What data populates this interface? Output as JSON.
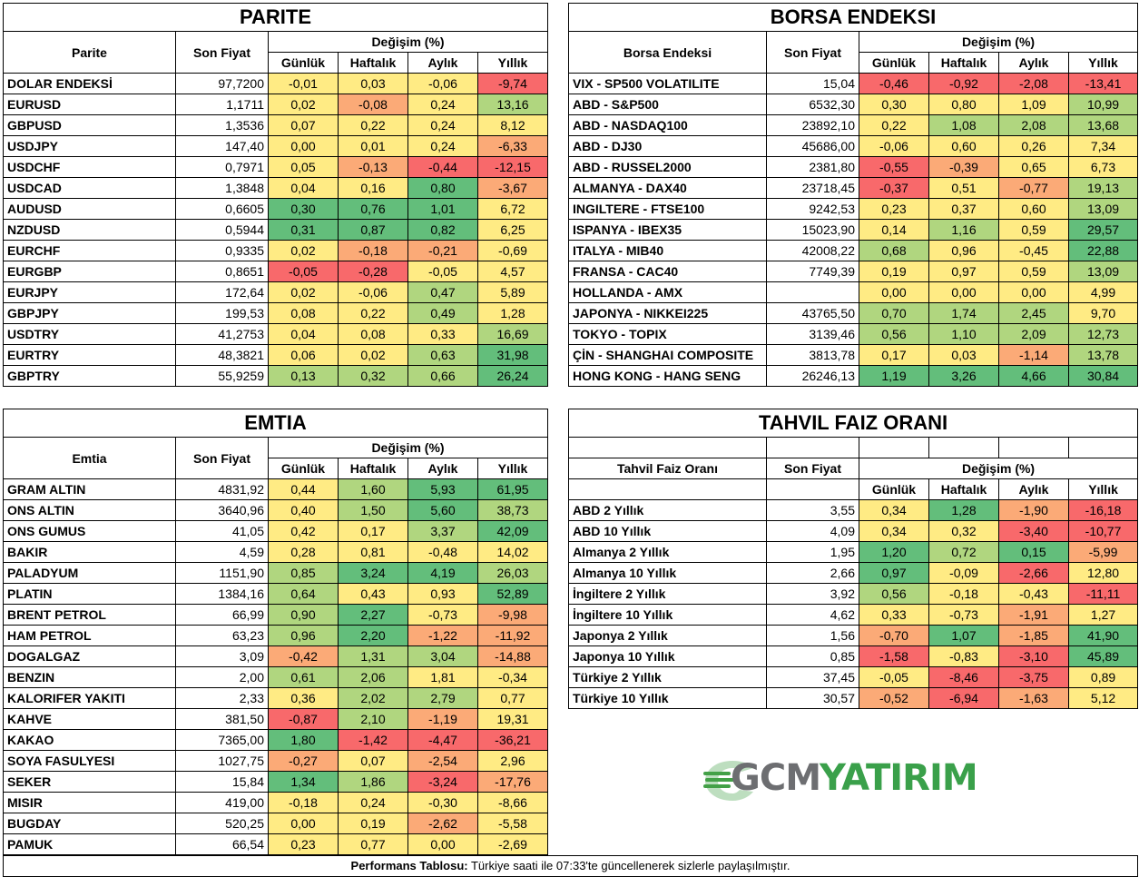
{
  "colors": {
    "red": "#f8696b",
    "orange": "#fbaa77",
    "yellow": "#ffeb84",
    "lightgreen": "#b0d67f",
    "green": "#63be7b"
  },
  "parite": {
    "title": "PARITE",
    "col_name": "Parite",
    "col_price": "Son Fiyat",
    "col_change": "Değişim (%)",
    "periods": [
      "Günlük",
      "Haftalık",
      "Aylık",
      "Yıllık"
    ],
    "rows": [
      {
        "name": "DOLAR ENDEKSİ",
        "price": "97,7200",
        "changes": [
          "-0,01",
          "0,03",
          "-0,06",
          "-9,74"
        ]
      },
      {
        "name": "EURUSD",
        "price": "1,1711",
        "changes": [
          "0,02",
          "-0,08",
          "0,24",
          "13,16"
        ]
      },
      {
        "name": "GBPUSD",
        "price": "1,3536",
        "changes": [
          "0,07",
          "0,22",
          "0,24",
          "8,12"
        ]
      },
      {
        "name": "USDJPY",
        "price": "147,40",
        "changes": [
          "0,00",
          "0,01",
          "0,24",
          "-6,33"
        ]
      },
      {
        "name": "USDCHF",
        "price": "0,7971",
        "changes": [
          "0,05",
          "-0,13",
          "-0,44",
          "-12,15"
        ]
      },
      {
        "name": "USDCAD",
        "price": "1,3848",
        "changes": [
          "0,04",
          "0,16",
          "0,80",
          "-3,67"
        ]
      },
      {
        "name": "AUDUSD",
        "price": "0,6605",
        "changes": [
          "0,30",
          "0,76",
          "1,01",
          "6,72"
        ]
      },
      {
        "name": "NZDUSD",
        "price": "0,5944",
        "changes": [
          "0,31",
          "0,87",
          "0,82",
          "6,25"
        ]
      },
      {
        "name": "EURCHF",
        "price": "0,9335",
        "changes": [
          "0,02",
          "-0,18",
          "-0,21",
          "-0,69"
        ]
      },
      {
        "name": "EURGBP",
        "price": "0,8651",
        "changes": [
          "-0,05",
          "-0,28",
          "-0,05",
          "4,57"
        ]
      },
      {
        "name": "EURJPY",
        "price": "172,64",
        "changes": [
          "0,02",
          "-0,06",
          "0,47",
          "5,89"
        ]
      },
      {
        "name": "GBPJPY",
        "price": "199,53",
        "changes": [
          "0,08",
          "0,22",
          "0,49",
          "1,28"
        ]
      },
      {
        "name": "USDTRY",
        "price": "41,2753",
        "changes": [
          "0,04",
          "0,08",
          "0,33",
          "16,69"
        ]
      },
      {
        "name": "EURTRY",
        "price": "48,3821",
        "changes": [
          "0,06",
          "0,02",
          "0,63",
          "31,98"
        ]
      },
      {
        "name": "GBPTRY",
        "price": "55,9259",
        "changes": [
          "0,13",
          "0,32",
          "0,66",
          "26,24"
        ]
      }
    ]
  },
  "borsa": {
    "title": "BORSA ENDEKSI",
    "col_name": "Borsa Endeksi",
    "col_price": "Son Fiyat",
    "col_change": "Değişim (%)",
    "periods": [
      "Günlük",
      "Haftalık",
      "Aylık",
      "Yıllık"
    ],
    "rows": [
      {
        "name": "VIX  - SP500 VOLATILITE",
        "price": "15,04",
        "changes": [
          "-0,46",
          "-0,92",
          "-2,08",
          "-13,41"
        ]
      },
      {
        "name": "ABD - S&P500",
        "price": "6532,30",
        "changes": [
          "0,30",
          "0,80",
          "1,09",
          "10,99"
        ]
      },
      {
        "name": "ABD - NASDAQ100",
        "price": "23892,10",
        "changes": [
          "0,22",
          "1,08",
          "2,08",
          "13,68"
        ]
      },
      {
        "name": "ABD - DJ30",
        "price": "45686,00",
        "changes": [
          "-0,06",
          "0,60",
          "0,26",
          "7,34"
        ]
      },
      {
        "name": "ABD - RUSSEL2000",
        "price": "2381,80",
        "changes": [
          "-0,55",
          "-0,39",
          "0,65",
          "6,73"
        ]
      },
      {
        "name": "ALMANYA - DAX40",
        "price": "23718,45",
        "changes": [
          "-0,37",
          "0,51",
          "-0,77",
          "19,13"
        ]
      },
      {
        "name": "INGILTERE - FTSE100",
        "price": "9242,53",
        "changes": [
          "0,23",
          "0,37",
          "0,60",
          "13,09"
        ]
      },
      {
        "name": "ISPANYA - IBEX35",
        "price": "15023,90",
        "changes": [
          "0,14",
          "1,16",
          "0,59",
          "29,57"
        ]
      },
      {
        "name": "ITALYA - MIB40",
        "price": "42008,22",
        "changes": [
          "0,68",
          "0,96",
          "-0,45",
          "22,88"
        ]
      },
      {
        "name": "FRANSA - CAC40",
        "price": "7749,39",
        "changes": [
          "0,19",
          "0,97",
          "0,59",
          "13,09"
        ]
      },
      {
        "name": "HOLLANDA - AMX",
        "price": "",
        "changes": [
          "0,00",
          "0,00",
          "0,00",
          "4,99"
        ]
      },
      {
        "name": "JAPONYA - NIKKEI225",
        "price": "43765,50",
        "changes": [
          "0,70",
          "1,74",
          "2,45",
          "9,70"
        ]
      },
      {
        "name": "TOKYO - TOPIX",
        "price": "3139,46",
        "changes": [
          "0,56",
          "1,10",
          "2,09",
          "12,73"
        ]
      },
      {
        "name": "ÇİN - SHANGHAI COMPOSITE",
        "price": "3813,78",
        "changes": [
          "0,17",
          "0,03",
          "-1,14",
          "13,78"
        ]
      },
      {
        "name": "HONG KONG - HANG SENG",
        "price": "26246,13",
        "changes": [
          "1,19",
          "3,26",
          "4,66",
          "30,84"
        ]
      }
    ]
  },
  "emtia": {
    "title": "EMTIA",
    "col_name": "Emtia",
    "col_price": "Son Fiyat",
    "col_change": "Değişim (%)",
    "periods": [
      "Günlük",
      "Haftalık",
      "Aylık",
      "Yıllık"
    ],
    "rows": [
      {
        "name": "GRAM ALTIN",
        "price": "4831,92",
        "changes": [
          "0,44",
          "1,60",
          "5,93",
          "61,95"
        ]
      },
      {
        "name": "ONS ALTIN",
        "price": "3640,96",
        "changes": [
          "0,40",
          "1,50",
          "5,60",
          "38,73"
        ]
      },
      {
        "name": "ONS GUMUS",
        "price": "41,05",
        "changes": [
          "0,42",
          "0,17",
          "3,37",
          "42,09"
        ]
      },
      {
        "name": "BAKIR",
        "price": "4,59",
        "changes": [
          "0,28",
          "0,81",
          "-0,48",
          "14,02"
        ]
      },
      {
        "name": "PALADYUM",
        "price": "1151,90",
        "changes": [
          "0,85",
          "3,24",
          "4,19",
          "26,03"
        ]
      },
      {
        "name": "PLATIN",
        "price": "1384,16",
        "changes": [
          "0,64",
          "0,43",
          "0,93",
          "52,89"
        ]
      },
      {
        "name": "BRENT PETROL",
        "price": "66,99",
        "changes": [
          "0,90",
          "2,27",
          "-0,73",
          "-9,98"
        ]
      },
      {
        "name": "HAM PETROL",
        "price": "63,23",
        "changes": [
          "0,96",
          "2,20",
          "-1,22",
          "-11,92"
        ]
      },
      {
        "name": "DOGALGAZ",
        "price": "3,09",
        "changes": [
          "-0,42",
          "1,31",
          "3,04",
          "-14,88"
        ]
      },
      {
        "name": "BENZIN",
        "price": "2,00",
        "changes": [
          "0,61",
          "2,06",
          "1,81",
          "-0,34"
        ]
      },
      {
        "name": "KALORIFER YAKITI",
        "price": "2,33",
        "changes": [
          "0,36",
          "2,02",
          "2,79",
          "0,77"
        ]
      },
      {
        "name": "KAHVE",
        "price": "381,50",
        "changes": [
          "-0,87",
          "2,10",
          "-1,19",
          "19,31"
        ]
      },
      {
        "name": "KAKAO",
        "price": "7365,00",
        "changes": [
          "1,80",
          "-1,42",
          "-4,47",
          "-36,21"
        ]
      },
      {
        "name": "SOYA FASULYESI",
        "price": "1027,75",
        "changes": [
          "-0,27",
          "0,07",
          "-2,54",
          "2,96"
        ]
      },
      {
        "name": "SEKER",
        "price": "15,84",
        "changes": [
          "1,34",
          "1,86",
          "-3,24",
          "-17,76"
        ]
      },
      {
        "name": "MISIR",
        "price": "419,00",
        "changes": [
          "-0,18",
          "0,24",
          "-0,30",
          "-8,66"
        ]
      },
      {
        "name": "BUGDAY",
        "price": "520,25",
        "changes": [
          "0,00",
          "0,19",
          "-2,62",
          "-5,58"
        ]
      },
      {
        "name": "PAMUK",
        "price": "66,54",
        "changes": [
          "0,23",
          "0,77",
          "0,00",
          "-2,69"
        ]
      }
    ]
  },
  "tahvil": {
    "title": "TAHVIL FAIZ ORANI",
    "col_name": "Tahvil Faiz Oranı",
    "col_price": "Son Fiyat",
    "col_change": "Değişim (%)",
    "periods": [
      "Günlük",
      "Haftalık",
      "Aylık",
      "Yıllık"
    ],
    "rows": [
      {
        "name": "ABD 2 Yıllık",
        "price": "3,55",
        "changes": [
          "0,34",
          "1,28",
          "-1,90",
          "-16,18"
        ]
      },
      {
        "name": "ABD 10 Yıllık",
        "price": "4,09",
        "changes": [
          "0,34",
          "0,32",
          "-3,40",
          "-10,77"
        ]
      },
      {
        "name": "Almanya 2 Yıllık",
        "price": "1,95",
        "changes": [
          "1,20",
          "0,72",
          "0,15",
          "-5,99"
        ]
      },
      {
        "name": "Almanya 10 Yıllık",
        "price": "2,66",
        "changes": [
          "0,97",
          "-0,09",
          "-2,66",
          "12,80"
        ]
      },
      {
        "name": "İngiltere 2 Yıllık",
        "price": "3,92",
        "changes": [
          "0,56",
          "-0,18",
          "-0,43",
          "-11,11"
        ]
      },
      {
        "name": "İngiltere 10 Yıllık",
        "price": "4,62",
        "changes": [
          "0,33",
          "-0,73",
          "-1,91",
          "1,27"
        ]
      },
      {
        "name": "Japonya 2 Yıllık",
        "price": "1,56",
        "changes": [
          "-0,70",
          "1,07",
          "-1,85",
          "41,90"
        ]
      },
      {
        "name": "Japonya 10 Yıllık",
        "price": "0,85",
        "changes": [
          "-1,58",
          "-0,83",
          "-3,10",
          "45,89"
        ]
      },
      {
        "name": "Türkiye 2 Yıllık",
        "price": "37,45",
        "changes": [
          "-0,05",
          "-8,46",
          "-3,75",
          "0,89"
        ]
      },
      {
        "name": "Türkiye 10 Yıllık",
        "price": "30,57",
        "changes": [
          "-0,52",
          "-6,94",
          "-1,63",
          "5,12"
        ]
      }
    ]
  },
  "logo": {
    "text_gcm": "GCM",
    "text_yatirim": "YATIRIM"
  },
  "footer": {
    "bold": "Performans Tablosu:",
    "text": " Türkiye saati ile 07:33'te güncellenerek sizlerle paylaşılmıştır."
  }
}
